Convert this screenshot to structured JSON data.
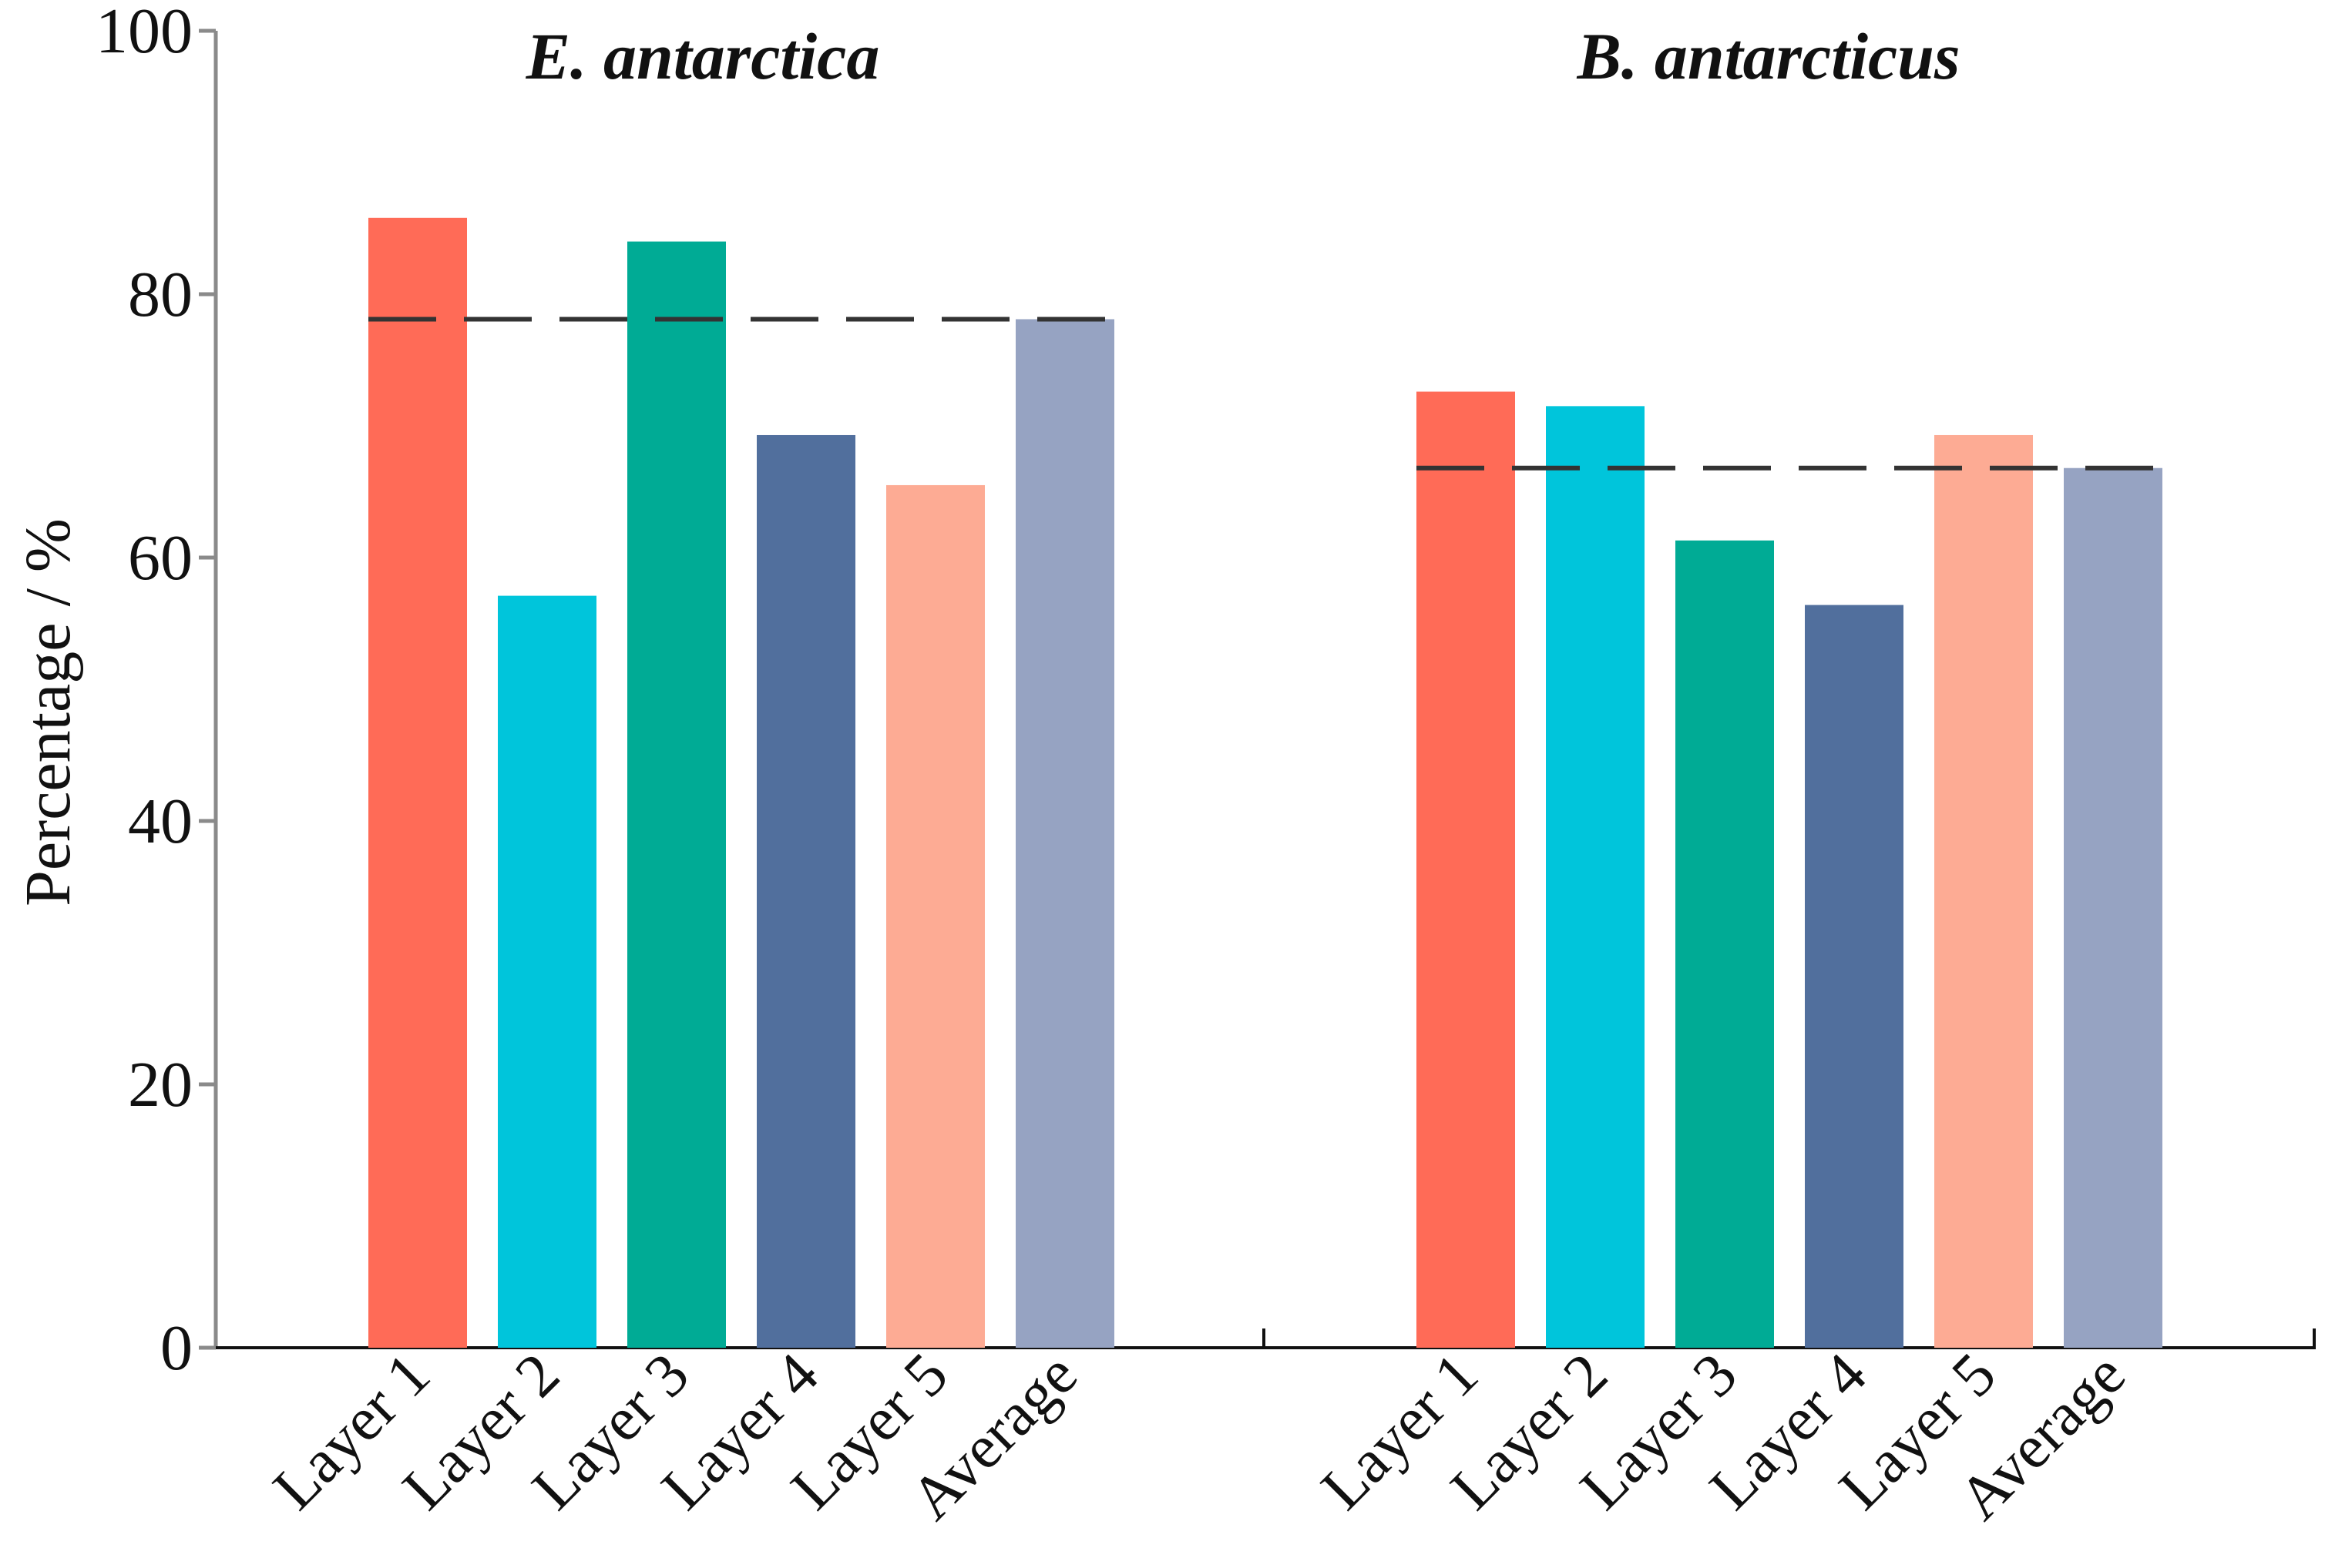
{
  "chart_data": {
    "type": "bar",
    "ylabel": "Percentage / %",
    "xlabel": "",
    "ylim": [
      0,
      100
    ],
    "yticks": [
      "0",
      "20",
      "40",
      "60",
      "80",
      "100"
    ],
    "categories": [
      "Layer 1",
      "Layer 2",
      "Layer 3",
      "Layer 4",
      "Layer 5",
      "Average"
    ],
    "colors": [
      "#FF6B57",
      "#00C5DB",
      "#00AB95",
      "#516F9D",
      "#FDAB94",
      "#96A3C2"
    ],
    "grid": false,
    "panels": [
      {
        "title": "E. antarctica",
        "values": [
          85.8,
          57.1,
          84.0,
          69.3,
          65.5,
          78.1
        ],
        "mean_line": 78.1
      },
      {
        "title": "B. antarcticus",
        "values": [
          72.6,
          71.5,
          61.3,
          56.4,
          69.3,
          66.8
        ],
        "mean_line": 66.8
      }
    ]
  }
}
